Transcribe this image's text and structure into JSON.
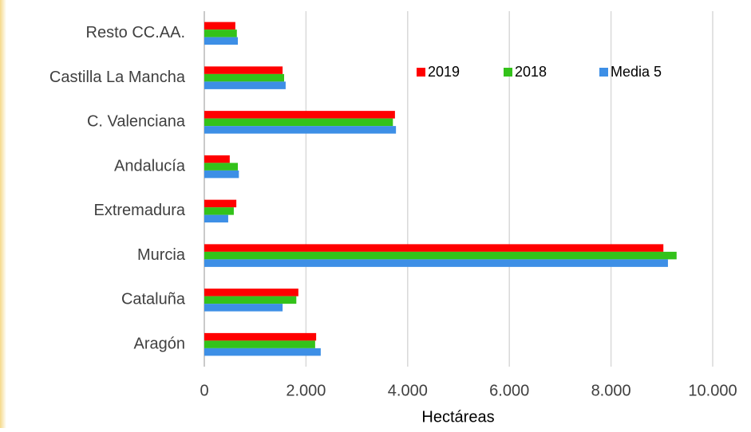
{
  "chart_data": {
    "type": "hbar",
    "xlabel": "Hectáreas",
    "categories": [
      "Resto CC.AA.",
      "Castilla La Mancha",
      "C. Valenciana",
      "Andalucía",
      "Extremadura",
      "Murcia",
      "Cataluña",
      "Aragón"
    ],
    "series": [
      {
        "name": "2019",
        "color": "#ff0000",
        "values": [
          610,
          1540,
          3750,
          500,
          630,
          9030,
          1850,
          2200
        ]
      },
      {
        "name": "2018",
        "color": "#33c21a",
        "values": [
          640,
          1570,
          3710,
          660,
          580,
          9290,
          1810,
          2180
        ]
      },
      {
        "name": "Media 5",
        "color": "#3d8fe6",
        "values": [
          660,
          1600,
          3770,
          680,
          470,
          9120,
          1540,
          2290
        ]
      }
    ],
    "xlim": [
      0,
      10000
    ],
    "xticks": [
      0,
      {
        "value": 2000,
        "label": "2.000"
      },
      {
        "value": 4000,
        "label": "4.000"
      },
      {
        "value": 6000,
        "label": "6.000"
      },
      {
        "value": 8000,
        "label": "8.000"
      },
      {
        "value": 10000,
        "label": "10.000"
      }
    ],
    "grid": true,
    "legend": "top-right"
  }
}
